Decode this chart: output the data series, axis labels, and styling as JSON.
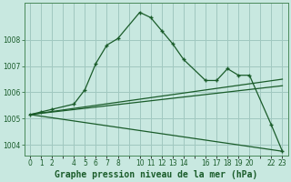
{
  "title": "Graphe pression niveau de la mer (hPa)",
  "background_color": "#c8e8e0",
  "grid_color": "#a0c8c0",
  "line_color": "#1a5c2a",
  "yticks": [
    1004,
    1005,
    1006,
    1007,
    1008
  ],
  "ylim": [
    1003.6,
    1009.4
  ],
  "xlim": [
    -0.5,
    23.5
  ],
  "xtick_labels": [
    "0",
    "1",
    "2",
    "",
    "4",
    "5",
    "6",
    "7",
    "8",
    "",
    "10",
    "11",
    "12",
    "13",
    "14",
    "",
    "16",
    "17",
    "18",
    "19",
    "20",
    "",
    "22",
    "23"
  ],
  "line1_x": [
    0,
    1,
    2,
    4,
    5,
    6,
    7,
    8,
    10,
    11,
    12,
    13,
    14,
    16,
    17,
    18,
    19,
    20,
    22,
    23
  ],
  "line1_y": [
    1005.15,
    1005.25,
    1005.35,
    1005.55,
    1006.1,
    1007.1,
    1007.8,
    1008.05,
    1009.05,
    1008.85,
    1008.35,
    1007.85,
    1007.25,
    1006.45,
    1006.45,
    1006.9,
    1006.65,
    1006.65,
    1004.75,
    1003.75
  ],
  "line2_x": [
    0,
    23
  ],
  "line2_y": [
    1005.15,
    1006.25
  ],
  "line3_x": [
    0,
    23
  ],
  "line3_y": [
    1005.15,
    1006.5
  ],
  "line4_x": [
    0,
    23
  ],
  "line4_y": [
    1005.15,
    1003.75
  ],
  "xlabel_color": "#1a5c2a",
  "tick_color": "#1a5c2a",
  "tick_fontsize": 5.5,
  "xlabel_fontsize": 7.0
}
